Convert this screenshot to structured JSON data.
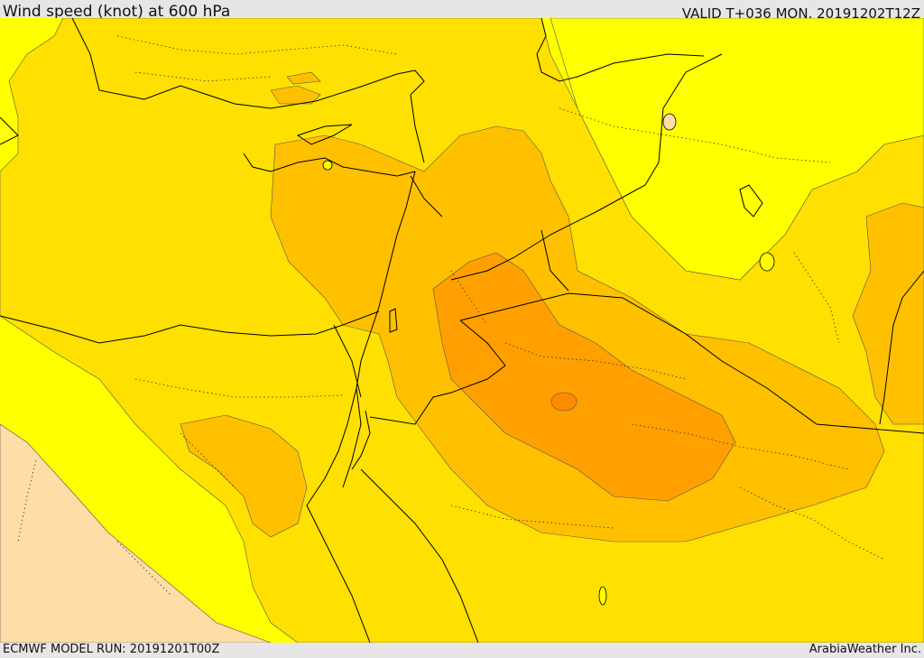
{
  "header": {
    "title": "Wind speed (knot) at 600 hPa",
    "valid_time": "VALID T+036 MON. 20191202T12Z"
  },
  "footer": {
    "model_run": "ECMWF MODEL RUN: 20191201T00Z",
    "credit": "ArabiaWeather Inc."
  },
  "colors": {
    "band_light_yellow": "#ffff00",
    "band_yellow": "#ffe000",
    "band_amber": "#ffc000",
    "band_orange": "#ffa000",
    "band_dark_orange": "#ff8c00",
    "band_calm": "#ffdda6",
    "coastline": "#000000",
    "border": "#000000"
  }
}
